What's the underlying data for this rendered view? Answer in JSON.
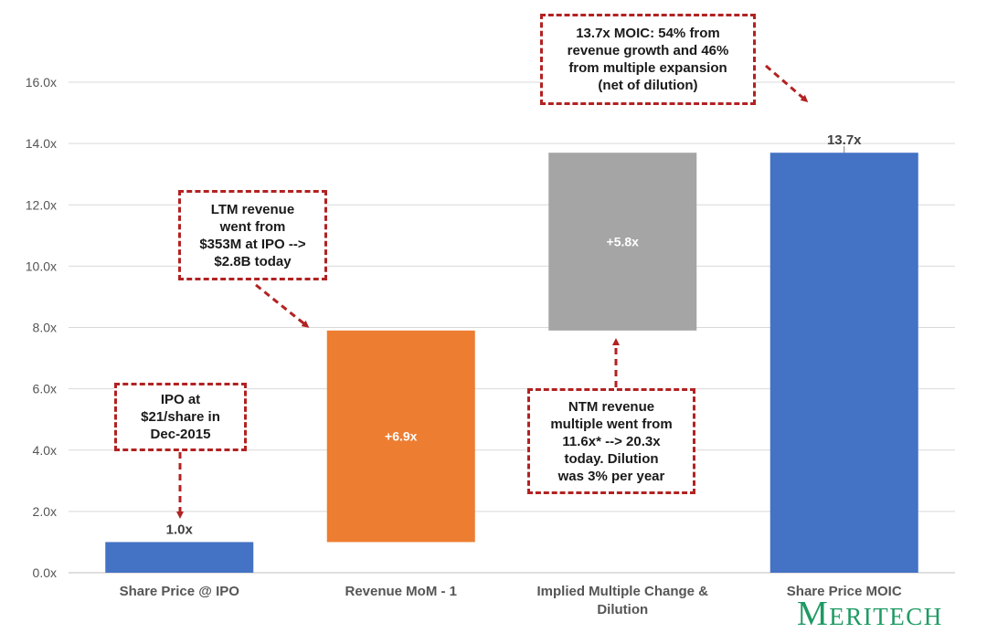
{
  "chart_data": {
    "type": "bar",
    "subtype": "waterfall",
    "categories": [
      "Share Price @ IPO",
      "Revenue MoM - 1",
      "Implied Multiple Change & Dilution",
      "Share Price MOIC"
    ],
    "category_lines": [
      [
        "Share Price @ IPO"
      ],
      [
        "Revenue MoM - 1"
      ],
      [
        "Implied Multiple Change &",
        "Dilution"
      ],
      [
        "Share Price MOIC"
      ]
    ],
    "bars": [
      {
        "category": "Share Price @ IPO",
        "start": 0,
        "end": 1.0,
        "color": "#4472c4",
        "label": "1.0x",
        "label_position": "above"
      },
      {
        "category": "Revenue MoM - 1",
        "start": 1.0,
        "end": 7.9,
        "color": "#ed7d31",
        "label": "+6.9x",
        "label_position": "inside"
      },
      {
        "category": "Implied Multiple Change & Dilution",
        "start": 7.9,
        "end": 13.7,
        "color": "#a5a5a5",
        "label": "+5.8x",
        "label_position": "inside"
      },
      {
        "category": "Share Price MOIC",
        "start": 0,
        "end": 13.7,
        "color": "#4472c4",
        "label": "13.7x",
        "label_position": "above"
      }
    ],
    "ylim": [
      0,
      16
    ],
    "yticks": [
      "0.0x",
      "2.0x",
      "4.0x",
      "6.0x",
      "8.0x",
      "10.0x",
      "12.0x",
      "14.0x",
      "16.0x"
    ],
    "ytick_values": [
      0,
      2,
      4,
      6,
      8,
      10,
      12,
      14,
      16
    ],
    "grid": true,
    "title": "",
    "xlabel": "",
    "ylabel": ""
  },
  "annotations": {
    "ipo": "IPO at\n$21/share in\nDec-2015",
    "ltm": "LTM revenue\nwent from\n$353M at IPO -->\n$2.8B today",
    "ntm": "NTM revenue\nmultiple went from\n11.6x* --> 20.3x\ntoday. Dilution\nwas 3% per year",
    "moic": "13.7x MOIC: 54% from\nrevenue growth and 46%\nfrom multiple expansion\n(net of dilution)"
  },
  "brand": {
    "first": "M",
    "rest": "ERITECH"
  },
  "colors": {
    "blue": "#4472c4",
    "orange": "#ed7d31",
    "gray": "#a5a5a5",
    "callout_border": "#b22222",
    "brand": "#1e9a63"
  }
}
